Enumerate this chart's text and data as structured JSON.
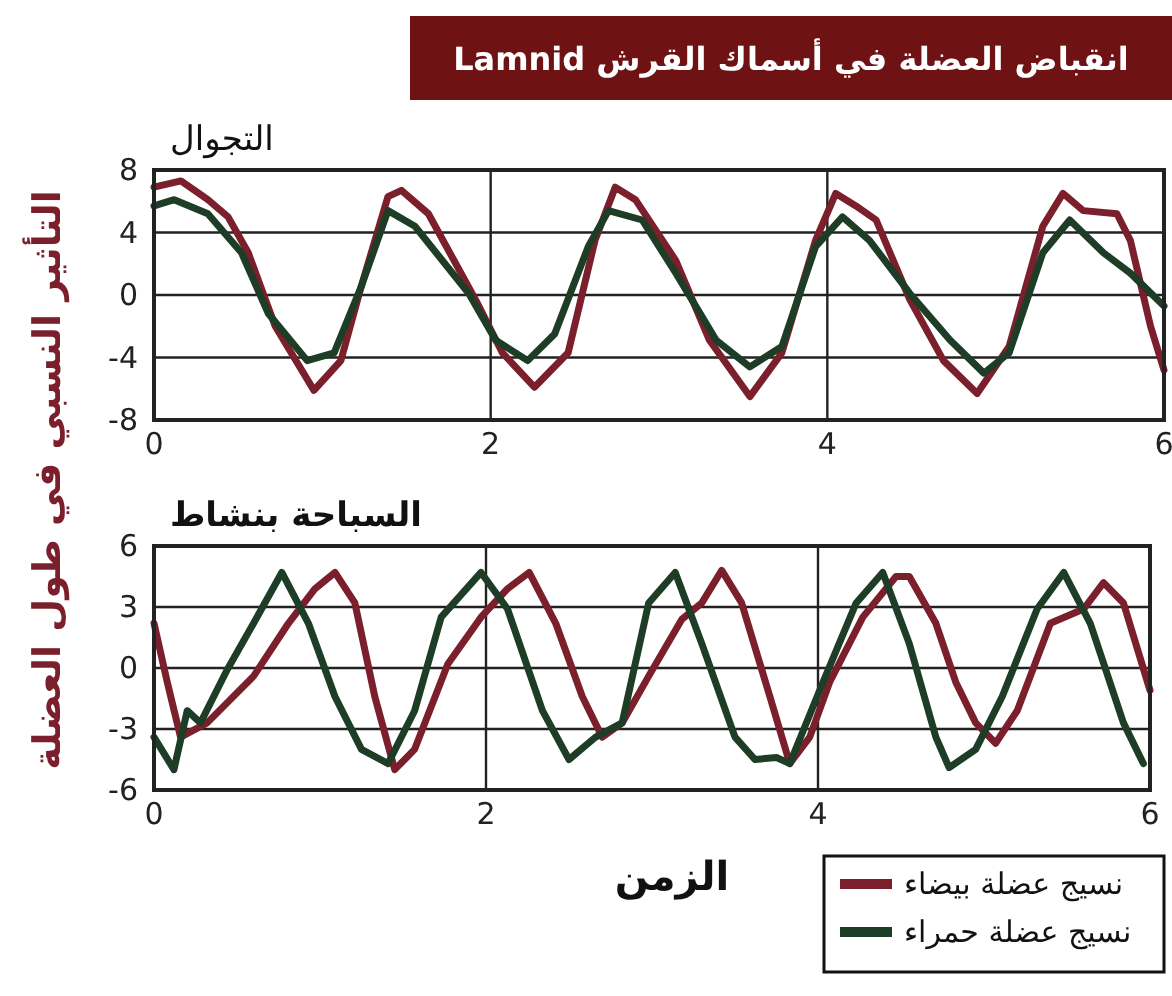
{
  "chart_data": [
    {
      "type": "line",
      "title": "انقباض العضلة في أسماك القرش Lamnid",
      "subtitle": "التجوال",
      "ylabel": "التأثير النسبي في طول العضلة",
      "xlim": [
        0,
        6
      ],
      "xticks": [
        0,
        2,
        4,
        6
      ],
      "ylim": [
        -8,
        8
      ],
      "yticks": [
        -8,
        -4,
        0,
        4,
        8
      ],
      "grid": true,
      "series": [
        {
          "color": "#7a1f2b",
          "x": [
            0,
            0.16,
            0.32,
            0.44,
            0.56,
            0.72,
            0.95,
            1.11,
            1.23,
            1.39,
            1.47,
            1.63,
            1.91,
            2.07,
            2.26,
            2.46,
            2.62,
            2.74,
            2.86,
            3.1,
            3.3,
            3.54,
            3.73,
            3.93,
            4.05,
            4.17,
            4.29,
            4.49,
            4.69,
            4.89,
            5.08,
            5.28,
            5.4,
            5.52,
            5.72,
            5.8,
            5.92,
            6
          ],
          "values": [
            6.9,
            7.3,
            6.1,
            5,
            2.7,
            -2,
            -6.1,
            -4.2,
            0.5,
            6.3,
            6.7,
            5.2,
            -0.3,
            -3.7,
            -5.9,
            -3.7,
            3.5,
            6.9,
            6.1,
            2.2,
            -2.9,
            -6.5,
            -3.7,
            3.5,
            6.5,
            5.7,
            4.8,
            -0.3,
            -4.2,
            -6.3,
            -3.3,
            4.4,
            6.5,
            5.4,
            5.2,
            3.5,
            -2,
            -4.8
          ]
        },
        {
          "color": "#1e3d26",
          "x": [
            0,
            0.12,
            0.32,
            0.52,
            0.68,
            0.91,
            1.07,
            1.23,
            1.39,
            1.55,
            1.87,
            2.03,
            2.22,
            2.38,
            2.58,
            2.7,
            2.9,
            3.1,
            3.34,
            3.54,
            3.73,
            3.93,
            4.09,
            4.25,
            4.49,
            4.73,
            4.93,
            5.08,
            5.28,
            5.44,
            5.64,
            5.8,
            6
          ],
          "values": [
            5.7,
            6.1,
            5.2,
            2.7,
            -1.2,
            -4.2,
            -3.7,
            0.5,
            5.4,
            4.4,
            0.1,
            -2.9,
            -4.2,
            -2.5,
            3.1,
            5.4,
            4.8,
            1.4,
            -2.9,
            -4.6,
            -3.3,
            3.1,
            5,
            3.5,
            0.1,
            -2.9,
            -5,
            -3.7,
            2.7,
            4.8,
            2.7,
            1.4,
            -0.7
          ]
        }
      ]
    },
    {
      "type": "line",
      "subtitle": "السباحة بنشاط",
      "xlabel": "الزمن",
      "xlim": [
        0,
        6
      ],
      "xticks": [
        0,
        2,
        4,
        6
      ],
      "ylim": [
        -6,
        6
      ],
      "yticks": [
        -6,
        -3,
        0,
        3,
        6
      ],
      "grid": true,
      "legend": "bottom right",
      "series": [
        {
          "name": "نسيج عضلة بيضاء",
          "color": "#7a1f2b",
          "x": [
            0,
            0.08,
            0.16,
            0.32,
            0.6,
            0.81,
            0.97,
            1.09,
            1.21,
            1.33,
            1.45,
            1.57,
            1.77,
            1.97,
            2.13,
            2.26,
            2.42,
            2.58,
            2.7,
            2.82,
            2.98,
            3.18,
            3.3,
            3.42,
            3.54,
            3.71,
            3.83,
            3.95,
            4.07,
            4.27,
            4.47,
            4.55,
            4.71,
            4.83,
            4.95,
            5.07,
            5.2,
            5.4,
            5.6,
            5.72,
            5.84,
            6
          ],
          "values": [
            2.2,
            -0.7,
            -3.4,
            -2.7,
            -0.4,
            2.2,
            3.9,
            4.7,
            3.2,
            -1.4,
            -5,
            -4,
            0.2,
            2.5,
            3.9,
            4.7,
            2.2,
            -1.4,
            -3.4,
            -2.7,
            -0.4,
            2.4,
            3.2,
            4.8,
            3.2,
            -1.4,
            -4.7,
            -3.4,
            -0.7,
            2.5,
            4.5,
            4.5,
            2.2,
            -0.7,
            -2.7,
            -3.7,
            -2.1,
            2.2,
            2.9,
            4.2,
            3.2,
            -1.1
          ]
        },
        {
          "name": "نسيج عضلة حمراء",
          "color": "#1e3d26",
          "x": [
            0,
            0.12,
            0.2,
            0.28,
            0.44,
            0.6,
            0.77,
            0.93,
            1.09,
            1.25,
            1.41,
            1.57,
            1.73,
            1.97,
            2.13,
            2.34,
            2.5,
            2.66,
            2.82,
            2.98,
            3.14,
            3.3,
            3.5,
            3.62,
            3.75,
            3.83,
            4.03,
            4.23,
            4.39,
            4.55,
            4.71,
            4.79,
            4.95,
            5.11,
            5.32,
            5.48,
            5.64,
            5.84,
            5.96
          ],
          "values": [
            -3.4,
            -5,
            -2.1,
            -2.7,
            -0.1,
            2.2,
            4.7,
            2.2,
            -1.4,
            -4,
            -4.7,
            -2.1,
            2.5,
            4.7,
            2.9,
            -2.1,
            -4.5,
            -3.4,
            -2.7,
            3.2,
            4.7,
            1.2,
            -3.4,
            -4.5,
            -4.4,
            -4.7,
            -0.7,
            3.2,
            4.7,
            1.2,
            -3.4,
            -4.9,
            -4,
            -1.4,
            2.9,
            4.7,
            2.2,
            -2.7,
            -4.7
          ]
        }
      ]
    }
  ]
}
